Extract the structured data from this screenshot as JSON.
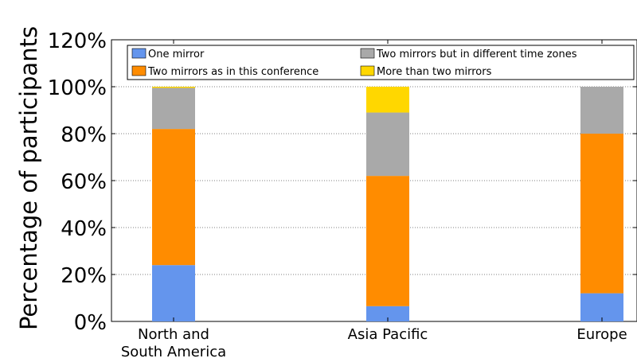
{
  "chart_data": {
    "type": "bar",
    "stacked": true,
    "title": "",
    "xlabel": "",
    "ylabel": "Percentage of participants",
    "ylim": [
      0,
      120
    ],
    "yticks": [
      0,
      20,
      40,
      60,
      80,
      100,
      120
    ],
    "ytick_labels": [
      "0%",
      "20%",
      "40%",
      "60%",
      "80%",
      "100%",
      "120%"
    ],
    "grid": true,
    "legend_position": "top",
    "categories": [
      "North and\nSouth America",
      "Asia Pacific",
      "Europe"
    ],
    "series": [
      {
        "name": "One mirror",
        "color": "#6495ed",
        "values": [
          24,
          6.5,
          12
        ]
      },
      {
        "name": "Two mirrors as in this conference",
        "color": "#ff8c00",
        "values": [
          58,
          55.5,
          68
        ]
      },
      {
        "name": "Two mirrors but in different time zones",
        "color": "#a9a9a9",
        "values": [
          17.5,
          27,
          20
        ]
      },
      {
        "name": "More than two mirrors",
        "color": "#ffd700",
        "values": [
          0.5,
          11,
          0
        ]
      }
    ]
  }
}
